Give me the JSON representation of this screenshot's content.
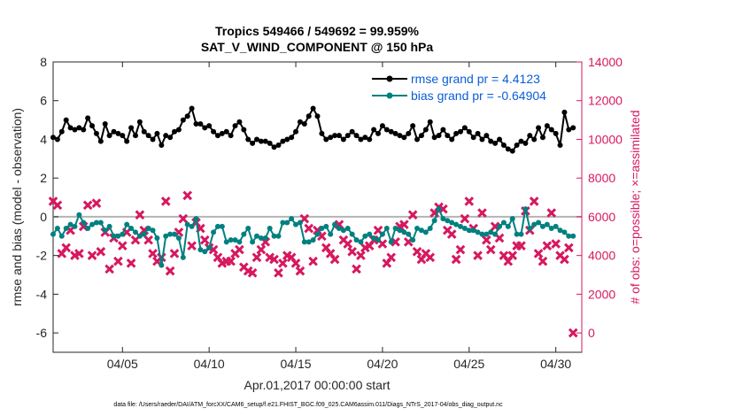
{
  "chart_data": {
    "type": "line",
    "title": "Tropics 549466 / 549692 = 99.959%",
    "subtitle": "SAT_V_WIND_COMPONENT @ 150 hPa",
    "xlabel": "Apr.01,2017 00:00:00 start",
    "ylabel": "rmse and bias (model - observation)",
    "y2label": "# of obs: o=possible; ×=assimilated",
    "footer": "data file: /Users/raeder/DAI/ATM_forcXX/CAM6_setup/f.e21.FHIST_BGC.f09_025.CAM6assim.011/Diags_NTrS_2017-04/obs_diag_output.nc",
    "xlim": [
      1,
      31.5
    ],
    "ylim": [
      -7,
      8
    ],
    "y2lim": [
      -1000,
      14000
    ],
    "x_ticks": [
      5,
      10,
      15,
      20,
      25,
      30
    ],
    "x_tick_labels": [
      "04/05",
      "04/10",
      "04/15",
      "04/20",
      "04/25",
      "04/30"
    ],
    "y_ticks": [
      -6,
      -4,
      -2,
      0,
      2,
      4,
      6,
      8
    ],
    "y2_ticks": [
      0,
      2000,
      4000,
      6000,
      8000,
      10000,
      12000,
      14000
    ],
    "legend_location": "top-right",
    "colors": {
      "rmse": "#000000",
      "bias": "#008080",
      "obs": "#d6185f",
      "zero_line": "#b4b4b4",
      "legend_text": "#0b5ed7",
      "right_axis": "#d6185f"
    },
    "series": [
      {
        "name": "rmse grand pr = 4.4123",
        "axis": "left",
        "x": [
          1.0,
          1.25,
          1.5,
          1.75,
          2.0,
          2.25,
          2.5,
          2.75,
          3.0,
          3.25,
          3.5,
          3.75,
          4.0,
          4.25,
          4.5,
          4.75,
          5.0,
          5.25,
          5.5,
          5.75,
          6.0,
          6.25,
          6.5,
          6.75,
          7.0,
          7.25,
          7.5,
          7.75,
          8.0,
          8.25,
          8.5,
          8.75,
          9.0,
          9.25,
          9.5,
          9.75,
          10.0,
          10.25,
          10.5,
          10.75,
          11.0,
          11.25,
          11.5,
          11.75,
          12.0,
          12.25,
          12.5,
          12.75,
          13.0,
          13.25,
          13.5,
          13.75,
          14.0,
          14.25,
          14.5,
          14.75,
          15.0,
          15.25,
          15.5,
          15.75,
          16.0,
          16.25,
          16.5,
          16.75,
          17.0,
          17.25,
          17.5,
          17.75,
          18.0,
          18.25,
          18.5,
          18.75,
          19.0,
          19.25,
          19.5,
          19.75,
          20.0,
          20.25,
          20.5,
          20.75,
          21.0,
          21.25,
          21.5,
          21.75,
          22.0,
          22.25,
          22.5,
          22.75,
          23.0,
          23.25,
          23.5,
          23.75,
          24.0,
          24.25,
          24.5,
          24.75,
          25.0,
          25.25,
          25.5,
          25.75,
          26.0,
          26.25,
          26.5,
          26.75,
          27.0,
          27.25,
          27.5,
          27.75,
          28.0,
          28.25,
          28.5,
          28.75,
          29.0,
          29.25,
          29.5,
          29.75,
          30.0,
          30.25,
          30.5,
          30.75,
          31.0
        ],
        "values": [
          4.1,
          4.0,
          4.4,
          5.0,
          4.6,
          4.5,
          4.6,
          4.5,
          5.1,
          4.7,
          4.3,
          3.9,
          4.8,
          4.2,
          4.4,
          4.3,
          4.2,
          3.9,
          4.6,
          4.2,
          4.9,
          4.4,
          4.2,
          4.0,
          4.3,
          3.7,
          4.2,
          4.1,
          4.4,
          4.5,
          5.0,
          5.2,
          5.6,
          4.8,
          4.8,
          4.6,
          4.7,
          4.4,
          4.2,
          4.3,
          4.4,
          4.2,
          4.7,
          4.9,
          4.5,
          4.0,
          3.8,
          4.0,
          3.9,
          3.9,
          3.8,
          3.6,
          3.7,
          3.9,
          4.0,
          4.1,
          4.4,
          4.9,
          4.8,
          5.2,
          5.6,
          5.2,
          4.3,
          4.0,
          4.1,
          4.2,
          4.2,
          4.0,
          4.2,
          4.4,
          4.2,
          4.0,
          4.1,
          4.0,
          4.5,
          4.3,
          4.7,
          4.5,
          4.4,
          4.3,
          4.2,
          4.1,
          4.3,
          4.7,
          4.0,
          4.2,
          4.5,
          4.9,
          4.1,
          4.2,
          4.5,
          4.2,
          4.0,
          4.3,
          4.4,
          4.6,
          4.4,
          4.1,
          4.3,
          4.0,
          4.2,
          3.9,
          3.8,
          4.0,
          3.7,
          3.5,
          3.4,
          3.7,
          3.9,
          3.8,
          4.2,
          4.0,
          4.6,
          4.1,
          4.7,
          4.5,
          4.3,
          3.7,
          5.4,
          4.5,
          4.6
        ],
        "color": "#000000"
      },
      {
        "name": "bias grand pr = -0.64904",
        "axis": "left",
        "x": [
          1.0,
          1.25,
          1.5,
          1.75,
          2.0,
          2.25,
          2.5,
          2.75,
          3.0,
          3.25,
          3.5,
          3.75,
          4.0,
          4.25,
          4.5,
          4.75,
          5.0,
          5.25,
          5.5,
          5.75,
          6.0,
          6.25,
          6.5,
          6.75,
          7.0,
          7.25,
          7.5,
          7.75,
          8.0,
          8.25,
          8.5,
          8.75,
          9.0,
          9.25,
          9.5,
          9.75,
          10.0,
          10.25,
          10.5,
          10.75,
          11.0,
          11.25,
          11.5,
          11.75,
          12.0,
          12.25,
          12.5,
          12.75,
          13.0,
          13.25,
          13.5,
          13.75,
          14.0,
          14.25,
          14.5,
          14.75,
          15.0,
          15.25,
          15.5,
          15.75,
          16.0,
          16.25,
          16.5,
          16.75,
          17.0,
          17.25,
          17.5,
          17.75,
          18.0,
          18.25,
          18.5,
          18.75,
          19.0,
          19.25,
          19.5,
          19.75,
          20.0,
          20.25,
          20.5,
          20.75,
          21.0,
          21.25,
          21.5,
          21.75,
          22.0,
          22.25,
          22.5,
          22.75,
          23.0,
          23.25,
          23.5,
          23.75,
          24.0,
          24.25,
          24.5,
          24.75,
          25.0,
          25.25,
          25.5,
          25.75,
          26.0,
          26.25,
          26.5,
          26.75,
          27.0,
          27.25,
          27.5,
          27.75,
          28.0,
          28.25,
          28.5,
          28.75,
          29.0,
          29.25,
          29.5,
          29.75,
          30.0,
          30.25,
          30.5,
          30.75,
          31.0
        ],
        "values": [
          -0.9,
          -0.6,
          -1.0,
          -0.6,
          -0.4,
          -0.5,
          0.1,
          -0.3,
          -0.6,
          -0.4,
          -0.3,
          -0.3,
          -0.7,
          -0.5,
          -1.0,
          -1.0,
          -0.9,
          -0.4,
          -0.6,
          -0.8,
          -1.0,
          -0.9,
          -0.6,
          -0.7,
          -1.1,
          -2.5,
          -1.0,
          -0.9,
          -0.9,
          -1.1,
          -2.1,
          -0.4,
          -0.5,
          -0.1,
          -1.7,
          -1.8,
          -1.6,
          -0.8,
          -0.5,
          -0.5,
          -1.3,
          -1.2,
          -1.2,
          -1.3,
          -0.9,
          -0.6,
          -1.3,
          -1.0,
          -1.1,
          -1.1,
          -0.6,
          -1.0,
          -1.0,
          -0.3,
          -0.3,
          -0.1,
          -0.4,
          -0.3,
          -1.3,
          -1.3,
          -1.2,
          -0.9,
          -0.6,
          -0.5,
          -0.9,
          -0.4,
          -0.6,
          -0.7,
          -0.6,
          -0.9,
          -1.2,
          -1.3,
          -1.0,
          -0.9,
          -1.1,
          -1.2,
          -0.9,
          -0.6,
          -1.3,
          -0.6,
          -0.7,
          -0.8,
          -0.9,
          -1.2,
          -0.6,
          -0.7,
          -0.8,
          -0.6,
          -0.2,
          0.4,
          -0.1,
          -0.2,
          -0.3,
          -0.4,
          -0.5,
          -0.6,
          -0.7,
          -0.7,
          -0.8,
          -0.9,
          -0.9,
          -0.8,
          -0.9,
          -0.5,
          -0.3,
          -0.5,
          -0.1,
          -0.9,
          -0.9,
          0.4,
          -0.6,
          -0.4,
          -0.3,
          -0.5,
          -0.4,
          -0.6,
          -0.5,
          -0.7,
          -0.8,
          -1.0,
          -1.0
        ],
        "color": "#008080"
      },
      {
        "name": "# of obs",
        "axis": "right",
        "marker": "x",
        "x": [
          1.0,
          1.25,
          1.5,
          1.75,
          2.0,
          2.25,
          2.5,
          2.75,
          3.0,
          3.25,
          3.5,
          3.75,
          4.0,
          4.25,
          4.5,
          4.75,
          5.0,
          5.25,
          5.5,
          5.75,
          6.0,
          6.25,
          6.5,
          6.75,
          7.0,
          7.25,
          7.5,
          7.75,
          8.0,
          8.25,
          8.5,
          8.75,
          9.0,
          9.25,
          9.5,
          9.75,
          10.0,
          10.25,
          10.5,
          10.75,
          11.0,
          11.25,
          11.5,
          11.75,
          12.0,
          12.25,
          12.5,
          12.75,
          13.0,
          13.25,
          13.5,
          13.75,
          14.0,
          14.25,
          14.5,
          14.75,
          15.0,
          15.25,
          15.5,
          15.75,
          16.0,
          16.25,
          16.5,
          16.75,
          17.0,
          17.25,
          17.5,
          17.75,
          18.0,
          18.25,
          18.5,
          18.75,
          19.0,
          19.25,
          19.5,
          19.75,
          20.0,
          20.25,
          20.5,
          20.75,
          21.0,
          21.25,
          21.5,
          21.75,
          22.0,
          22.25,
          22.5,
          22.75,
          23.0,
          23.25,
          23.5,
          23.75,
          24.0,
          24.25,
          24.5,
          24.75,
          25.0,
          25.25,
          25.5,
          25.75,
          26.0,
          26.25,
          26.5,
          26.75,
          27.0,
          27.25,
          27.5,
          27.75,
          28.0,
          28.25,
          28.5,
          28.75,
          29.0,
          29.25,
          29.5,
          29.75,
          30.0,
          30.25,
          30.5,
          30.75,
          31.0
        ],
        "values": [
          6800,
          6600,
          4100,
          4400,
          5300,
          4000,
          4100,
          5500,
          6600,
          4000,
          6700,
          4200,
          5200,
          3300,
          4900,
          3700,
          4500,
          5200,
          3600,
          4800,
          6100,
          5300,
          4800,
          4100,
          3700,
          3900,
          6800,
          3200,
          4100,
          5200,
          5900,
          7100,
          4500,
          5700,
          5400,
          4800,
          4400,
          4300,
          3900,
          3600,
          3700,
          3700,
          4100,
          4300,
          3400,
          3200,
          3100,
          3900,
          4300,
          4700,
          3900,
          3800,
          3100,
          3600,
          4000,
          3900,
          3600,
          3200,
          5900,
          5400,
          3700,
          5300,
          5000,
          4400,
          4100,
          3800,
          5600,
          4800,
          4600,
          4200,
          3300,
          4000,
          4400,
          4500,
          4800,
          5300,
          4600,
          3600,
          3900,
          4700,
          5500,
          5600,
          4700,
          6100,
          4200,
          3800,
          4100,
          3900,
          6200,
          6500,
          6400,
          5300,
          5100,
          3800,
          4300,
          5900,
          6800,
          5400,
          4000,
          6200,
          4800,
          4300,
          5500,
          4900,
          4000,
          3700,
          4000,
          4500,
          4500,
          6300,
          5300,
          6800,
          4100,
          3700,
          4500,
          6200,
          4600,
          4000,
          3800,
          4400,
          0
        ],
        "color": "#d6185f"
      }
    ]
  }
}
